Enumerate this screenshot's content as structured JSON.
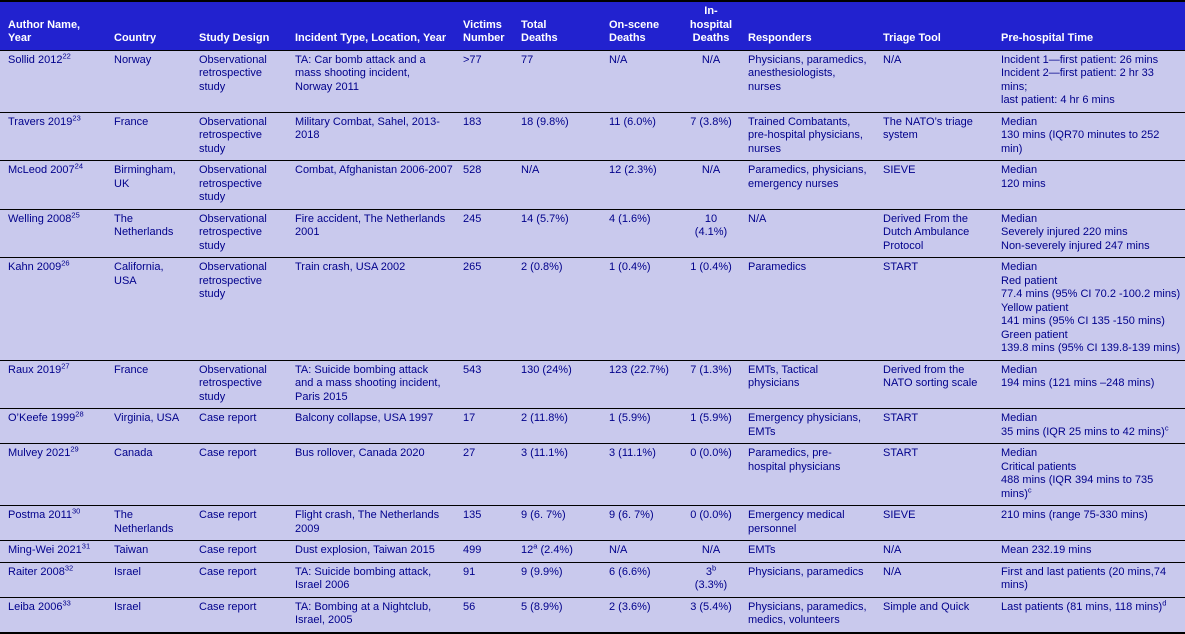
{
  "colors": {
    "header_bg": "#2222cf",
    "header_text": "#ffffff",
    "body_bg": "#c9c9ed",
    "body_text": "#00008b",
    "border": "#000000"
  },
  "table": {
    "columns": [
      "Author Name,\nYear",
      "Country",
      "Study Design",
      "Incident Type, Location, Year",
      "Victims\nNumber",
      "Total\nDeaths",
      "On-scene\nDeaths",
      "In-\nhospital\nDeaths",
      "Responders",
      "Triage Tool",
      "Pre-hospital Time"
    ],
    "rows": [
      [
        "Sollid 2012^{22}",
        "Norway",
        "Observational\nretrospective\nstudy",
        "TA: Car bomb attack and a\nmass shooting incident,\nNorway 2011",
        ">77",
        "77",
        "N/A",
        "N/A",
        "Physicians, paramedics,\nanesthesiologists,\nnurses",
        "N/A",
        "Incident 1—first patient: 26 mins\nIncident 2—first patient: 2 hr 33\nmins;\nlast patient: 4 hr 6 mins"
      ],
      [
        "Travers 2019^{23}",
        "France",
        "Observational\nretrospective\nstudy",
        "Military Combat, Sahel, 2013-\n2018",
        "183",
        "18 (9.8%)",
        "11 (6.0%)",
        "7 (3.8%)",
        "Trained Combatants,\npre-hospital physicians,\nnurses",
        "The NATO’s triage\nsystem",
        "Median\n130 mins (IQR70 minutes to 252\nmin)"
      ],
      [
        "McLeod 2007^{24}",
        "Birmingham,\nUK",
        "Observational\nretrospective\nstudy",
        "Combat, Afghanistan 2006-2007",
        "528",
        "N/A",
        "12 (2.3%)",
        "N/A",
        "Paramedics, physicians,\nemergency nurses",
        "SIEVE",
        "Median\n120 mins"
      ],
      [
        "Welling 2008^{25}",
        "The\nNetherlands",
        "Observational\nretrospective\nstudy",
        "Fire accident, The Netherlands\n2001",
        "245",
        "14 (5.7%)",
        "4 (1.6%)",
        "10\n(4.1%)",
        "N/A",
        "Derived From the\nDutch Ambulance\nProtocol",
        "Median\nSeverely injured 220 mins\nNon-severely injured 247 mins"
      ],
      [
        "Kahn 2009^{26}",
        "California,\nUSA",
        "Observational\nretrospective\nstudy",
        "Train crash, USA 2002",
        "265",
        "2 (0.8%)",
        "1 (0.4%)",
        "1 (0.4%)",
        "Paramedics",
        "START",
        "Median\nRed patient\n77.4 mins (95% CI 70.2 -100.2 mins)\nYellow patient\n141 mins (95% CI 135 -150 mins)\nGreen patient\n139.8 mins (95% CI 139.8-139 mins)"
      ],
      [
        "Raux 2019^{27}",
        "France",
        "Observational\nretrospective\nstudy",
        "TA: Suicide bombing attack\nand a mass shooting incident,\nParis 2015",
        "543",
        "130 (24%)",
        "123 (22.7%)",
        "7 (1.3%)",
        "EMTs, Tactical\nphysicians",
        "Derived from the\nNATO sorting scale",
        "Median\n194 mins (121 mins –248 mins)"
      ],
      [
        "O’Keefe 1999^{28}",
        "Virginia, USA",
        "Case report",
        "Balcony collapse, USA 1997",
        "17",
        "2 (11.8%)",
        "1 (5.9%)",
        "1 (5.9%)",
        "Emergency physicians,\nEMTs",
        "START",
        "Median\n35 mins (IQR 25 mins to 42 mins)^{c}"
      ],
      [
        "Mulvey 2021^{29}",
        "Canada",
        "Case report",
        "Bus rollover, Canada 2020",
        "27",
        "3 (11.1%)",
        "3 (11.1%)",
        "0 (0.0%)",
        "Paramedics, pre-\nhospital physicians",
        "START",
        "Median\nCritical patients\n488 mins (IQR 394 mins to 735\nmins)^{c}"
      ],
      [
        "Postma 2011^{30}",
        "The\nNetherlands",
        "Case report",
        "Flight crash, The Netherlands\n2009",
        "135",
        "9 (6. 7%)",
        "9 (6. 7%)",
        "0 (0.0%)",
        "Emergency medical\npersonnel",
        "SIEVE",
        "210 mins (range 75-330 mins)"
      ],
      [
        "Ming-Wei 2021^{31}",
        "Taiwan",
        "Case report",
        "Dust explosion, Taiwan 2015",
        "499",
        "12^{a} (2.4%)",
        "N/A",
        "N/A",
        "EMTs",
        "N/A",
        "Mean 232.19 mins"
      ],
      [
        "Raiter 2008^{32}",
        "Israel",
        "Case report",
        "TA: Suicide bombing attack,\nIsrael 2006",
        "91",
        "9 (9.9%)",
        "6 (6.6%)",
        "3^{b}\n(3.3%)",
        "Physicians, paramedics",
        "N/A",
        "First and last patients (20 mins,74\nmins)"
      ],
      [
        "Leiba 2006^{33}",
        "Israel",
        "Case report",
        "TA: Bombing at a Nightclub,\nIsrael, 2005",
        "56",
        "5 (8.9%)",
        "2 (3.6%)",
        "3 (5.4%)",
        "Physicians, paramedics,\nmedics, volunteers",
        "Simple and Quick",
        "Last patients (81 mins, 118 mins)^{d}"
      ]
    ]
  }
}
